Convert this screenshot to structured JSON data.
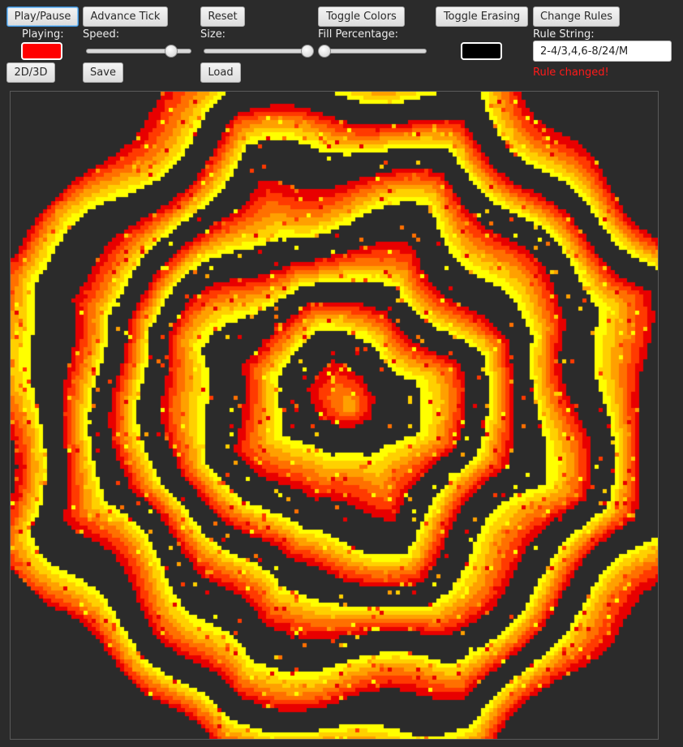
{
  "toolbar": {
    "play_pause": "Play/Pause",
    "advance_tick": "Advance Tick",
    "reset": "Reset",
    "toggle_colors": "Toggle Colors",
    "toggle_erasing": "Toggle Erasing",
    "change_rules": "Change Rules",
    "mode_toggle": "2D/3D",
    "save": "Save",
    "load": "Load"
  },
  "labels": {
    "playing": "Playing:",
    "speed": "Speed:",
    "size": "Size:",
    "fill_percentage": "Fill Percentage:",
    "rule_string": "Rule String:"
  },
  "indicators": {
    "playing_color": "#ff0000",
    "brush_color": "#000000"
  },
  "sliders": {
    "speed_fraction": 0.85,
    "size_fraction": 1.0,
    "fill_fraction": 0.0
  },
  "rule": {
    "value": "2-4/3,4,6-8/24/M",
    "status": "Rule changed!"
  },
  "board": {
    "background": "#2b2b2b",
    "palette": [
      "#ffff00",
      "#ffd000",
      "#ffa000",
      "#ff7000",
      "#ff3a00",
      "#e80000"
    ]
  }
}
